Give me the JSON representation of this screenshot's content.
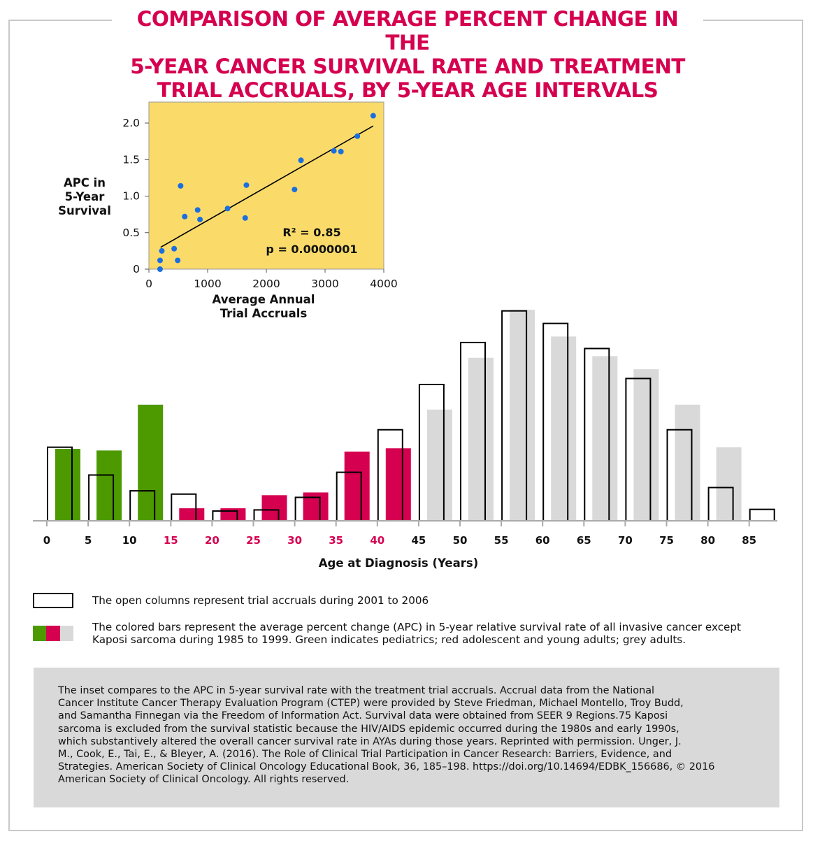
{
  "title": "COMPARISON OF AVERAGE PERCENT CHANGE IN THE\n5-YEAR CANCER SURVIVAL RATE AND TREATMENT\nTRIAL ACCRUALS, BY 5-YEAR AGE INTERVALS",
  "colors": {
    "title": "#d5004f",
    "pediatric": "#4d9900",
    "aya": "#d5004f",
    "adult": "#d9d9d9",
    "inset_bg": "#fadb6a",
    "inset_point": "#1a6fe0",
    "note_bg": "#d9d9d9"
  },
  "legend": {
    "open": "The open columns represent trial accruals during 2001 to 2006",
    "colored_line1": "The colored bars represent the average percent change (APC) in 5-year relative survival rate of all invasive cancer except",
    "colored_line2": "Kaposi sarcoma during 1985 to 1999. Green indicates pediatrics; red adolescent and young adults; grey adults."
  },
  "note": {
    "lines": [
      "The inset compares to the APC in 5-year survival rate with the treatment trial accruals.  Accrual data from the National",
      "Cancer Institute Cancer Therapy Evaluation Program (CTEP) were provided by Steve Friedman, Michael Montello, Troy Budd,",
      "and Samantha Finnegan via the Freedom of Information Act. Survival data were obtained from SEER 9 Regions.75 Kaposi",
      "sarcoma is excluded from the survival statistic because the HIV/AIDS epidemic occurred during the 1980s and early 1990s,",
      "which substantively altered the overall cancer survival rate in AYAs during those years. Reprinted with permission. Unger, J.",
      "M., Cook, E., Tai, E., & Bleyer, A. (2016). The Role of Clinical Trial Participation in Cancer Research: Barriers, Evidence, and",
      "Strategies. American Society of Clinical Oncology Educational Book, 36, 185–198. https://doi.org/10.14694/EDBK_156686, © 2016",
      "American Society of Clinical Oncology. All rights reserved."
    ]
  },
  "chart_data": [
    {
      "type": "bar",
      "xlabel": "Age at Diagnosis (Years)",
      "ylabel": "",
      "categories": [
        "0",
        "5",
        "10",
        "15",
        "20",
        "25",
        "30",
        "35",
        "40",
        "45",
        "50",
        "55",
        "60",
        "65",
        "70",
        "75",
        "80",
        "85"
      ],
      "category_groups": [
        "pediatric",
        "pediatric",
        "pediatric",
        "aya",
        "aya",
        "aya",
        "aya",
        "aya",
        "aya",
        "adult",
        "adult",
        "adult",
        "adult",
        "adult",
        "adult",
        "adult",
        "adult",
        "adult"
      ],
      "y_axis_shown": false,
      "series": [
        {
          "key": "open",
          "style": "open columns",
          "values": [
            1.35,
            0.84,
            0.55,
            0.49,
            0.18,
            0.2,
            0.43,
            0.89,
            1.67,
            2.5,
            3.27,
            3.85,
            3.62,
            3.16,
            2.61,
            1.67,
            0.61,
            0.21
          ]
        },
        {
          "key": "colored",
          "style": "filled bars",
          "values": [
            1.32,
            1.29,
            2.13,
            0.23,
            0.23,
            0.47,
            0.52,
            1.27,
            1.33,
            2.04,
            2.99,
            3.87,
            3.38,
            3.02,
            2.78,
            2.13,
            1.35,
            null
          ]
        }
      ]
    },
    {
      "type": "scatter",
      "xlabel": "Average Annual\nTrial Accruals",
      "ylabel": "APC in\n5-Year\nSurvival",
      "xlim": [
        0,
        4000
      ],
      "ylim": [
        0,
        2.2
      ],
      "xticks": [
        "0",
        "1000",
        "2000",
        "3000",
        "4000"
      ],
      "yticks": [
        "0",
        "0.5",
        "1.0",
        "1.5",
        "2.0"
      ],
      "annotation_r2": "R² = 0.85",
      "annotation_p": "p = 0.0000001",
      "points": [
        [
          190,
          0.0
        ],
        [
          190,
          0.12
        ],
        [
          220,
          0.25
        ],
        [
          430,
          0.28
        ],
        [
          490,
          0.12
        ],
        [
          540,
          1.14
        ],
        [
          610,
          0.72
        ],
        [
          830,
          0.81
        ],
        [
          870,
          0.68
        ],
        [
          1340,
          0.83
        ],
        [
          1640,
          0.7
        ],
        [
          1660,
          1.15
        ],
        [
          2480,
          1.09
        ],
        [
          2590,
          1.49
        ],
        [
          3150,
          1.62
        ],
        [
          3270,
          1.61
        ],
        [
          3550,
          1.82
        ],
        [
          3820,
          2.1
        ]
      ],
      "fit_line": [
        [
          200,
          0.3
        ],
        [
          3820,
          1.96
        ]
      ]
    }
  ]
}
